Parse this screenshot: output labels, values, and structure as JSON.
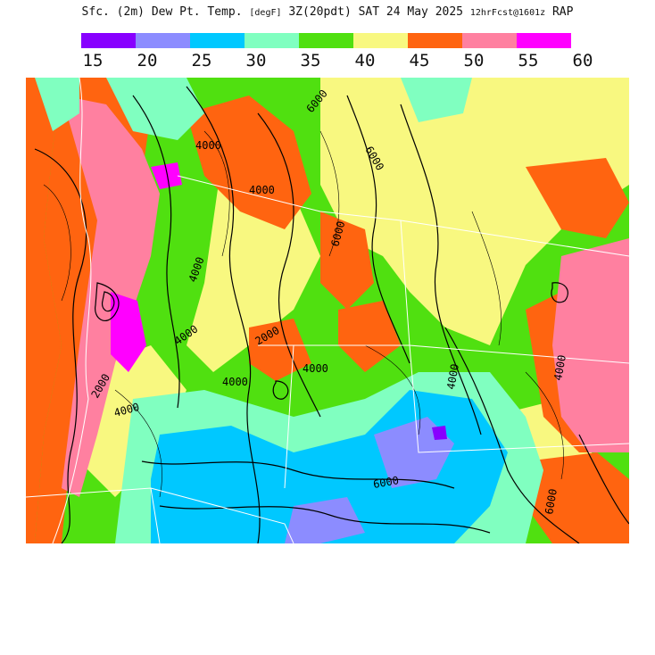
{
  "header": {
    "product": "Sfc. (2m) Dew Pt. Temp.",
    "units": "[degF]",
    "valid": "3Z(20pdt) SAT 24 May 2025",
    "run": "12hrFcst@1601z",
    "model": "RAP"
  },
  "legend": {
    "ticks": [
      "15",
      "20",
      "25",
      "30",
      "35",
      "40",
      "45",
      "50",
      "55",
      "60"
    ],
    "colors": [
      "#8800ff",
      "#8c8cff",
      "#00c8ff",
      "#80ffc0",
      "#50e010",
      "#f8f880",
      "#ff6410",
      "#ff80a0",
      "#ff00ff"
    ]
  },
  "map": {
    "contour_labels": [
      "4000",
      "4000",
      "4000",
      "4000",
      "6000",
      "6000",
      "6000",
      "2000",
      "2000",
      "4000",
      "6000",
      "4000",
      "4000",
      "6000",
      "4000",
      "4000"
    ]
  }
}
